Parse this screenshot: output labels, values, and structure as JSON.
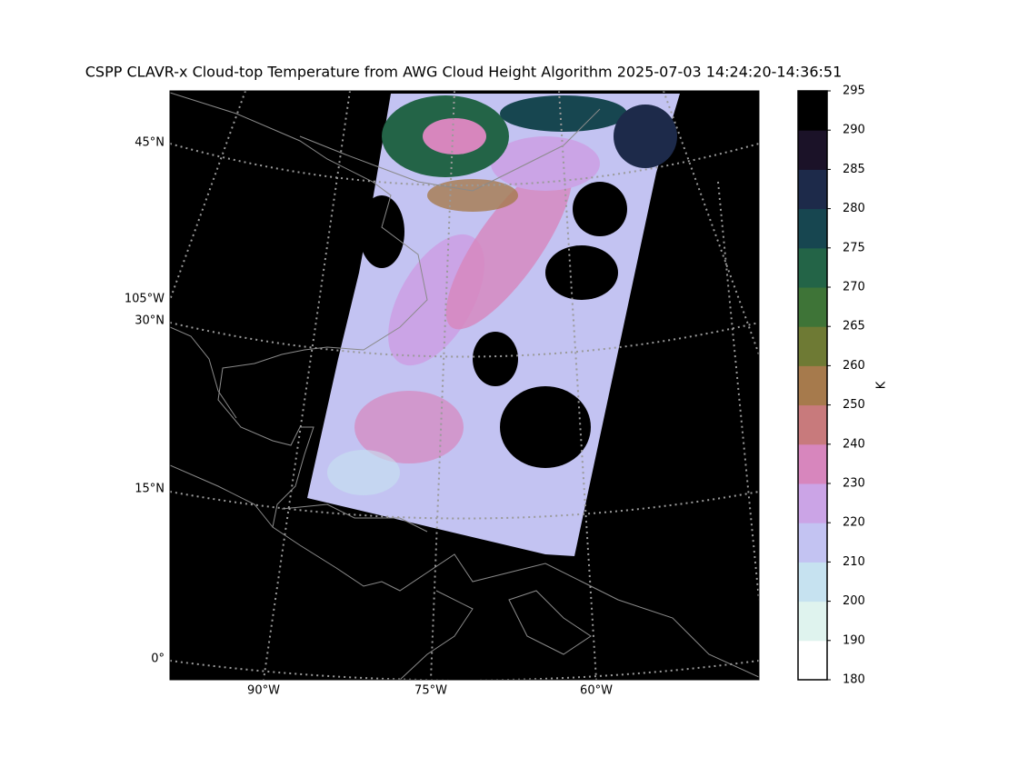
{
  "header": {
    "title": "CSPP CLAVR-x Cloud-top Temperature from AWG Cloud Height Algorithm 2025-07-03 14:24:20-14:36:51"
  },
  "map": {
    "lat_labels": [
      "45°N",
      "105°W",
      "30°N",
      "15°N",
      "0°"
    ],
    "lon_labels": [
      "90°W",
      "75°W",
      "60°W"
    ]
  },
  "colorbar": {
    "label": "K",
    "boundaries": [
      180,
      190,
      200,
      210,
      220,
      230,
      240,
      250,
      260,
      265,
      270,
      275,
      280,
      285,
      290,
      295
    ],
    "colors": [
      "#ffffff",
      "#dff3ee",
      "#c6e2f0",
      "#c3c3f2",
      "#cba4e6",
      "#d786bd",
      "#c87a7c",
      "#a67a4c",
      "#6e7a34",
      "#3e7437",
      "#236447",
      "#174650",
      "#1d2a4a",
      "#1b1228",
      "#000000"
    ]
  }
}
